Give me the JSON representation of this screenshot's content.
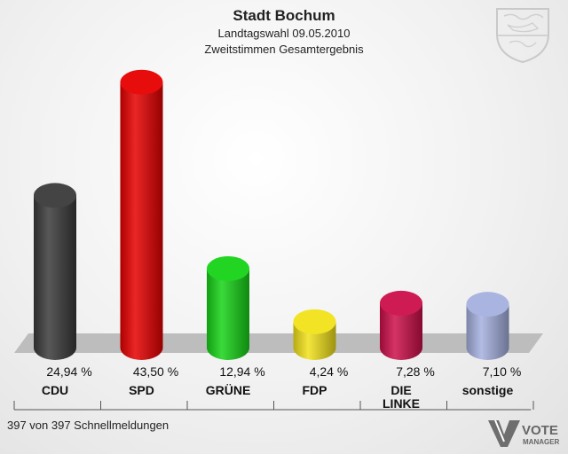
{
  "chart_data": {
    "type": "bar",
    "title": "Stadt Bochum",
    "subtitle": "Landtagswahl 09.05.2010",
    "subtitle2": "Zweitstimmen Gesamtergebnis",
    "categories": [
      "CDU",
      "SPD",
      "GRÜNE",
      "FDP",
      "DIE LINKE",
      "sonstige"
    ],
    "category_lines": [
      [
        "CDU"
      ],
      [
        "SPD"
      ],
      [
        "GRÜNE"
      ],
      [
        "FDP"
      ],
      [
        "DIE",
        "LINKE"
      ],
      [
        "sonstige"
      ]
    ],
    "values": [
      24.94,
      43.5,
      12.94,
      4.24,
      7.28,
      7.1
    ],
    "value_labels": [
      "24,94 %",
      "43,50 %",
      "12,94 %",
      "4,24 %",
      "7,28 %",
      "7,10 %"
    ],
    "colors": [
      "#3a3a3a",
      "#e60000",
      "#17d317",
      "#f2e21a",
      "#cc0f4a",
      "#a5b0df"
    ],
    "ylim": [
      0,
      50
    ],
    "grid": false
  },
  "footer": {
    "status": "397 von 397 Schnellmeldungen",
    "logo_line1": "VOTE",
    "logo_line2": "MANAGER"
  },
  "icons": {
    "crest": "coat-of-arms-icon",
    "logo": "vote-manager-logo-icon"
  }
}
